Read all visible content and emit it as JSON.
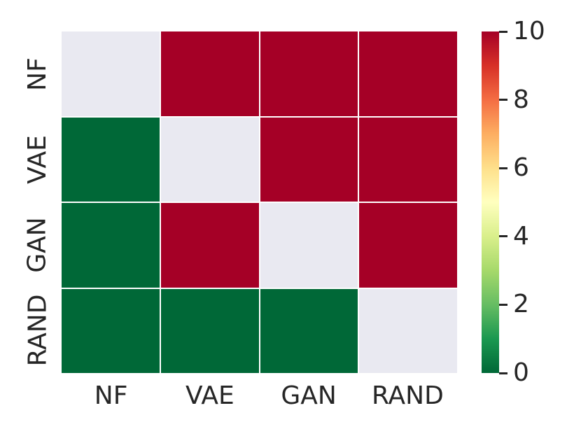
{
  "chart_data": {
    "type": "heatmap",
    "title": "",
    "xlabel": "",
    "ylabel": "",
    "rows": [
      "NF",
      "VAE",
      "GAN",
      "RAND"
    ],
    "columns": [
      "NF",
      "VAE",
      "GAN",
      "RAND"
    ],
    "values": [
      [
        null,
        10,
        10,
        10
      ],
      [
        0,
        null,
        10,
        10
      ],
      [
        0,
        10,
        null,
        10
      ],
      [
        0,
        0,
        0,
        null
      ]
    ],
    "vmin": 0,
    "vmax": 10,
    "colorbar": {
      "position": "right",
      "ticks": [
        0,
        2,
        4,
        6,
        8,
        10
      ]
    },
    "colormap": {
      "name": "RdYlGn_r",
      "stops_low_to_high": [
        "#006837",
        "#1a9850",
        "#66bd63",
        "#a6d96a",
        "#d9ef8b",
        "#ffffbf",
        "#fee08b",
        "#fdae61",
        "#f46d43",
        "#d73027",
        "#a50026"
      ]
    },
    "value_colors": {
      "high": "#a50026",
      "low": "#006837"
    },
    "masked_cell_color": "#e9e9f1",
    "grid_line_color": "#ffffff",
    "text_color": "#262626",
    "background_color": "#ffffff",
    "grid": false,
    "legend_position": "none"
  }
}
